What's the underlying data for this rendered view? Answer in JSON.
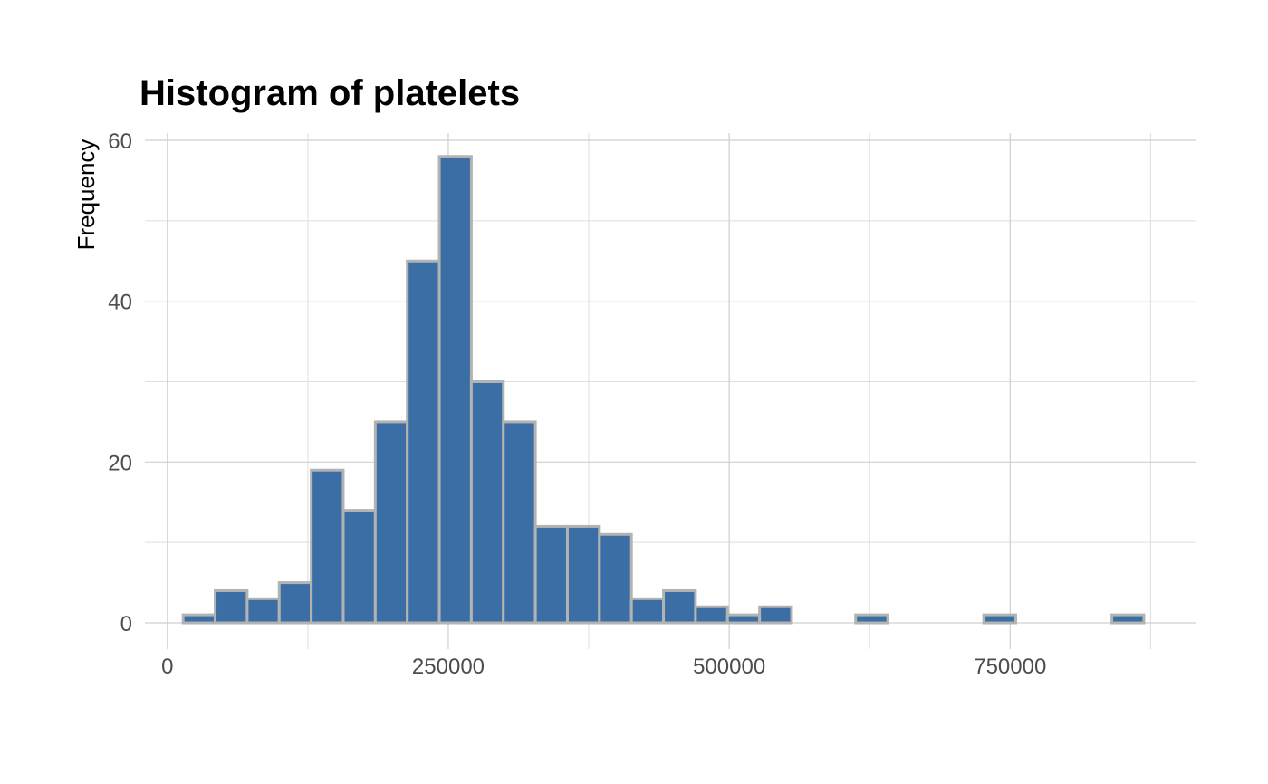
{
  "chart_data": {
    "type": "bar",
    "title": "Histogram of platelets",
    "xlabel": "",
    "ylabel": "Frequency",
    "x_ticks": [
      0,
      250000,
      500000,
      750000
    ],
    "x_tick_labels": [
      "0",
      "250000",
      "500000",
      "750000"
    ],
    "y_ticks": [
      0,
      20,
      40,
      60
    ],
    "y_tick_labels": [
      "0",
      "20",
      "40",
      "60"
    ],
    "xlim": [
      -20000,
      915000
    ],
    "ylim": [
      0,
      60
    ],
    "grid": true,
    "bar_fill": "#3a6ea5",
    "bar_stroke": "#b3b3b3",
    "bins": [
      {
        "x0": 14000,
        "x1": 42500,
        "count": 1
      },
      {
        "x0": 42500,
        "x1": 71000,
        "count": 4
      },
      {
        "x0": 71000,
        "x1": 99500,
        "count": 3
      },
      {
        "x0": 99500,
        "x1": 128000,
        "count": 5
      },
      {
        "x0": 128000,
        "x1": 156500,
        "count": 19
      },
      {
        "x0": 156500,
        "x1": 185000,
        "count": 14
      },
      {
        "x0": 185000,
        "x1": 213500,
        "count": 25
      },
      {
        "x0": 213500,
        "x1": 242000,
        "count": 45
      },
      {
        "x0": 242000,
        "x1": 270500,
        "count": 58
      },
      {
        "x0": 270500,
        "x1": 299000,
        "count": 30
      },
      {
        "x0": 299000,
        "x1": 327500,
        "count": 25
      },
      {
        "x0": 327500,
        "x1": 356000,
        "count": 12
      },
      {
        "x0": 356000,
        "x1": 384500,
        "count": 12
      },
      {
        "x0": 384500,
        "x1": 413000,
        "count": 11
      },
      {
        "x0": 413000,
        "x1": 441500,
        "count": 3
      },
      {
        "x0": 441500,
        "x1": 470000,
        "count": 4
      },
      {
        "x0": 470000,
        "x1": 498500,
        "count": 2
      },
      {
        "x0": 498500,
        "x1": 527000,
        "count": 1
      },
      {
        "x0": 527000,
        "x1": 555500,
        "count": 2
      },
      {
        "x0": 555500,
        "x1": 584000,
        "count": 0
      },
      {
        "x0": 584000,
        "x1": 612500,
        "count": 0
      },
      {
        "x0": 612500,
        "x1": 641000,
        "count": 1
      },
      {
        "x0": 641000,
        "x1": 669500,
        "count": 0
      },
      {
        "x0": 669500,
        "x1": 698000,
        "count": 0
      },
      {
        "x0": 698000,
        "x1": 726500,
        "count": 0
      },
      {
        "x0": 726500,
        "x1": 755000,
        "count": 1
      },
      {
        "x0": 755000,
        "x1": 783500,
        "count": 0
      },
      {
        "x0": 783500,
        "x1": 812000,
        "count": 0
      },
      {
        "x0": 812000,
        "x1": 840500,
        "count": 0
      },
      {
        "x0": 840500,
        "x1": 869000,
        "count": 1
      }
    ]
  }
}
